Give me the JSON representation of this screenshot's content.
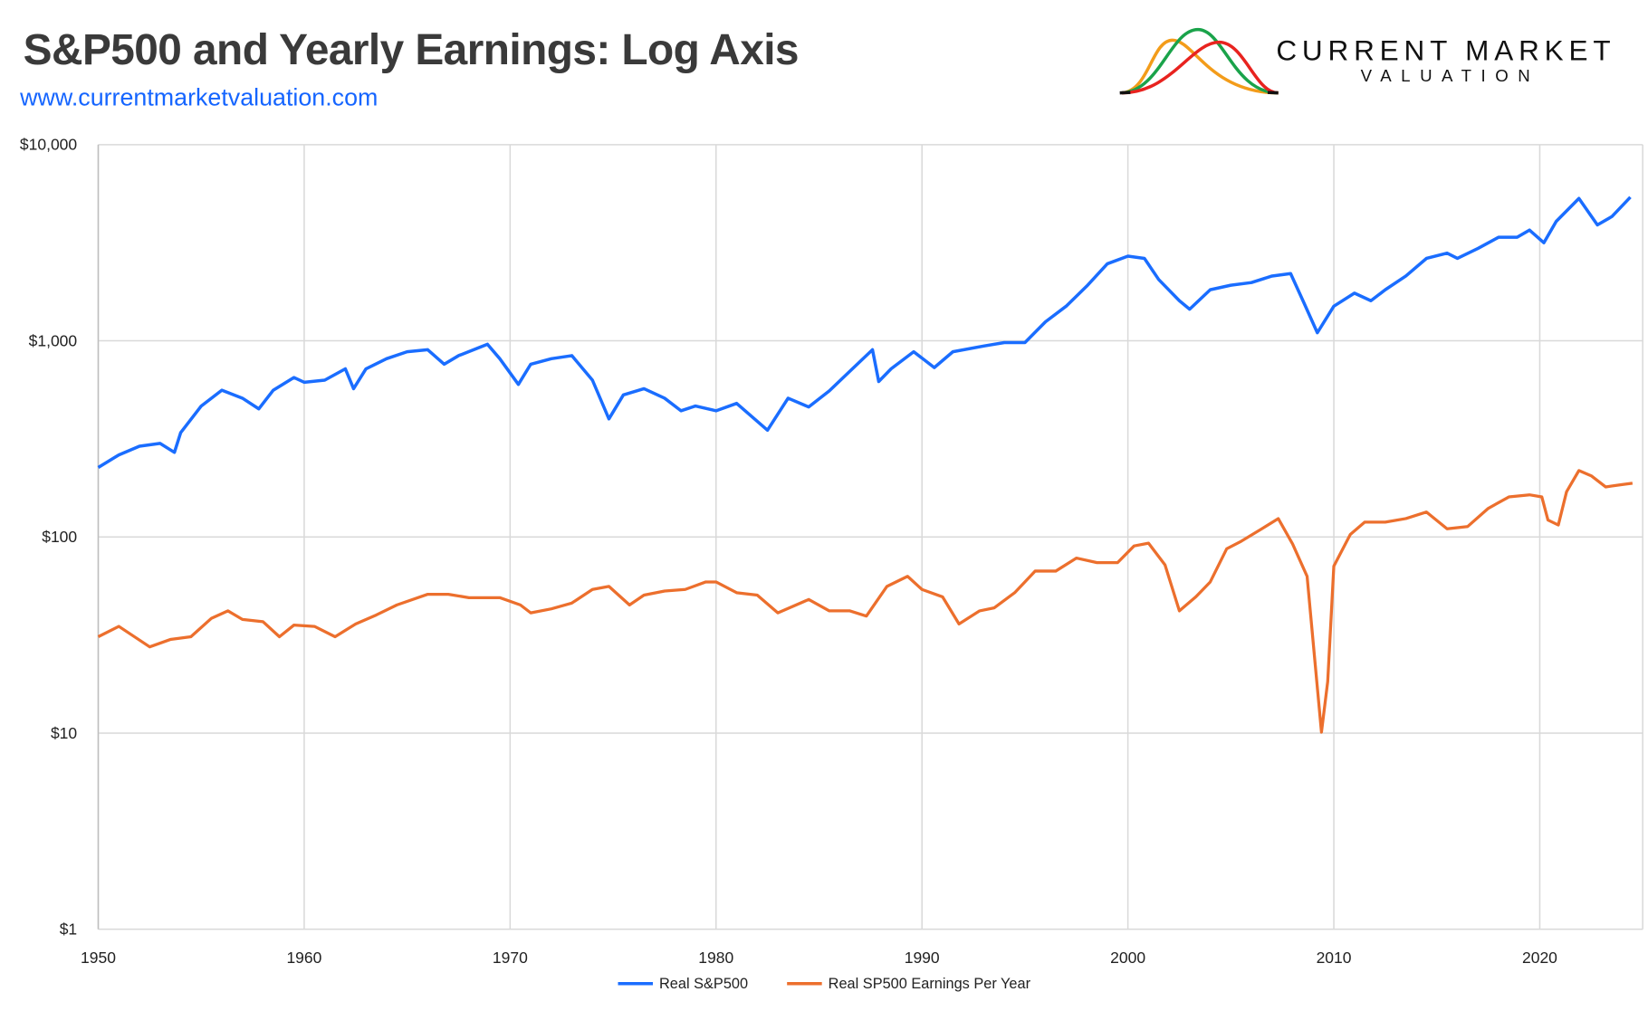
{
  "header": {
    "title": "S&P500 and Yearly Earnings: Log Axis",
    "url": "www.currentmarketvaluation.com",
    "brand_line1": "CURRENT MARKET",
    "brand_line2": "VALUATION"
  },
  "colors": {
    "sp500": "#1a6dff",
    "earnings": "#ec6f2d",
    "grid": "#d9d9d9",
    "title": "#3a3a3a",
    "url": "#1565ff"
  },
  "chart_data": {
    "type": "line",
    "title": "S&P500 and Yearly Earnings: Log Axis",
    "xlabel": "",
    "ylabel": "",
    "y_scale": "log",
    "xlim": [
      1950,
      2025
    ],
    "ylim": [
      1,
      10000
    ],
    "grid": true,
    "legend_position": "bottom",
    "x_ticks": [
      "1950",
      "1960",
      "1970",
      "1980",
      "1990",
      "2000",
      "2010",
      "2020"
    ],
    "y_ticks": [
      "$1",
      "$10",
      "$100",
      "$1,000",
      "$10,000"
    ],
    "series": [
      {
        "name": "Real S&P500",
        "color": "#1a6dff",
        "x": [
          1950,
          1951,
          1952,
          1953,
          1953.7,
          1954,
          1955,
          1956,
          1957,
          1957.8,
          1958.5,
          1959.5,
          1960,
          1961,
          1962,
          1962.4,
          1963,
          1964,
          1965,
          1966,
          1966.8,
          1967.5,
          1968.9,
          1969.5,
          1970.4,
          1971,
          1972,
          1973,
          1974,
          1974.8,
          1975.5,
          1976.5,
          1977.5,
          1978.3,
          1979,
          1980,
          1981,
          1982.5,
          1983.5,
          1984.5,
          1985.5,
          1986.5,
          1987.6,
          1987.9,
          1988.5,
          1989.6,
          1990.6,
          1991.5,
          1993,
          1994,
          1995,
          1996,
          1997,
          1998,
          1999,
          2000,
          2000.8,
          2001.5,
          2002.5,
          2003,
          2004,
          2005,
          2006,
          2007,
          2007.9,
          2008.5,
          2009.2,
          2010,
          2011,
          2011.8,
          2012.5,
          2013.5,
          2014.5,
          2015.5,
          2016,
          2017,
          2018,
          2018.9,
          2019.5,
          2020.2,
          2020.8,
          2021.9,
          2022.8,
          2023.5,
          2024.4
        ],
        "values": [
          226,
          262,
          290,
          300,
          270,
          340,
          465,
          560,
          510,
          450,
          560,
          650,
          615,
          630,
          720,
          570,
          720,
          810,
          880,
          900,
          760,
          840,
          960,
          810,
          600,
          760,
          810,
          840,
          630,
          400,
          530,
          570,
          510,
          440,
          465,
          440,
          480,
          350,
          510,
          460,
          555,
          700,
          900,
          620,
          720,
          880,
          730,
          880,
          940,
          980,
          980,
          1250,
          1500,
          1900,
          2470,
          2700,
          2630,
          2050,
          1600,
          1450,
          1820,
          1920,
          1980,
          2140,
          2200,
          1600,
          1100,
          1500,
          1750,
          1600,
          1820,
          2140,
          2630,
          2800,
          2630,
          2960,
          3370,
          3370,
          3670,
          3160,
          4060,
          5320,
          3900,
          4300,
          5400
        ]
      },
      {
        "name": "Real SP500 Earnings Per Year",
        "color": "#ec6f2d",
        "x": [
          1950,
          1951,
          1952.5,
          1953.5,
          1954.5,
          1955.5,
          1956.3,
          1957,
          1958,
          1958.8,
          1959.5,
          1960.5,
          1961.5,
          1962.5,
          1963.5,
          1964.5,
          1966,
          1967,
          1968,
          1969.5,
          1970.5,
          1971,
          1972,
          1973,
          1974,
          1974.8,
          1975.8,
          1976.5,
          1977.5,
          1978.5,
          1979.5,
          1980,
          1981,
          1982,
          1983,
          1984.5,
          1985.5,
          1986.5,
          1987.3,
          1988.3,
          1989.3,
          1990,
          1991,
          1991.8,
          1992.8,
          1993.5,
          1994.5,
          1995.5,
          1996.5,
          1997.5,
          1998.5,
          1999.5,
          2000.3,
          2001,
          2001.8,
          2002.5,
          2003.3,
          2004,
          2004.8,
          2005.5,
          2006.5,
          2007.3,
          2008,
          2008.7,
          2009.1,
          2009.4,
          2009.7,
          2010,
          2010.8,
          2011.5,
          2012.5,
          2013.5,
          2014.5,
          2015.5,
          2016.5,
          2017.5,
          2018.5,
          2019.5,
          2020.1,
          2020.4,
          2020.9,
          2021.3,
          2021.9,
          2022.5,
          2023.2,
          2024,
          2024.5
        ],
        "values": [
          31,
          35,
          27.5,
          30,
          31,
          38.5,
          42,
          38,
          37,
          31,
          35.5,
          35,
          31,
          36,
          40,
          45,
          51,
          51,
          49,
          49,
          45,
          41,
          43,
          46,
          54,
          56,
          45,
          50.5,
          53,
          54,
          59,
          59,
          52,
          50.5,
          41,
          48,
          42,
          42,
          39.5,
          56,
          63,
          54,
          49.5,
          36,
          42,
          43.5,
          52,
          67,
          67,
          78,
          74,
          74,
          90,
          93,
          72,
          42,
          49.5,
          59,
          87,
          95,
          110,
          124,
          92,
          63,
          22,
          10.1,
          18.3,
          71,
          103,
          119,
          119,
          124,
          134,
          110,
          113,
          140,
          160,
          164,
          160,
          122,
          115,
          170,
          218,
          205,
          180,
          185,
          188
        ]
      }
    ]
  }
}
